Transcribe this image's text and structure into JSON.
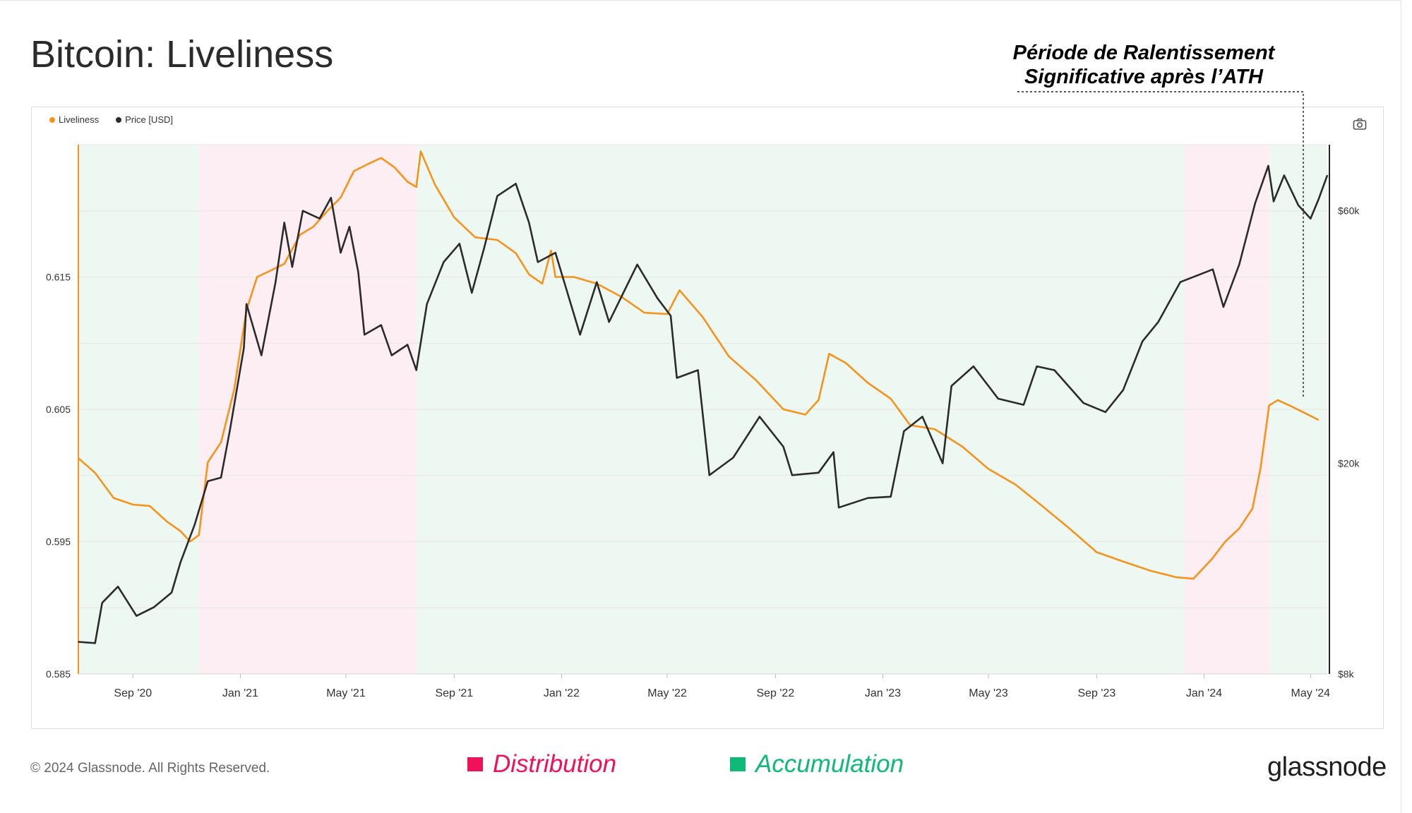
{
  "header": {
    "title": "Bitcoin: Liveliness",
    "callout_line1": "Période de Ralentissement",
    "callout_line2": "Significative après l’ATH"
  },
  "legend": {
    "liveliness_label": "Liveliness",
    "price_label": "Price [USD]"
  },
  "footer": {
    "copyright": "© 2024 Glassnode. All Rights Reserved.",
    "distribution_label": "Distribution",
    "accumulation_label": "Accumulation",
    "brand": "glassnode"
  },
  "watermark": "glassnode",
  "icons": {
    "camera": "camera-icon"
  },
  "colors": {
    "liveliness": "#f7931a",
    "price": "#2b2b2b",
    "distribution_band": "#fdeef3",
    "accumulation_band": "#eef8f3",
    "distribution_key": "#f0115a",
    "accumulation_key": "#0fb978"
  },
  "chart_data": {
    "type": "line",
    "title": "Bitcoin: Liveliness",
    "x_ticks": [
      "Sep '20",
      "Jan '21",
      "May '21",
      "Sep '21",
      "Jan '22",
      "May '22",
      "Sep '22",
      "Jan '23",
      "May '23",
      "Sep '23",
      "Jan '24",
      "May '24"
    ],
    "x_range": [
      "2020-07-01",
      "2024-05-20"
    ],
    "y_left": {
      "label": "Liveliness",
      "ticks": [
        "0.585",
        "0.595",
        "0.605",
        "0.615"
      ],
      "range": [
        0.585,
        0.625
      ]
    },
    "y_right": {
      "label": "Price [USD]",
      "scale": "log",
      "ticks": [
        "$8k",
        "$20k",
        "$60k"
      ],
      "range": [
        8000,
        80000
      ]
    },
    "grid": true,
    "legend_position": "top-left",
    "regimes": [
      {
        "label": "Accumulation",
        "start": "2020-07-01",
        "end": "2020-11-15"
      },
      {
        "label": "Distribution",
        "start": "2020-11-15",
        "end": "2021-07-20"
      },
      {
        "label": "Accumulation",
        "start": "2021-07-20",
        "end": "2023-12-10"
      },
      {
        "label": "Distribution",
        "start": "2023-12-10",
        "end": "2024-03-15"
      },
      {
        "label": "Accumulation",
        "start": "2024-03-15",
        "end": "2024-05-20"
      }
    ],
    "series": [
      {
        "name": "Liveliness",
        "axis": "left",
        "points": [
          [
            "2020-07-01",
            0.6013
          ],
          [
            "2020-07-20",
            0.6002
          ],
          [
            "2020-08-10",
            0.5983
          ],
          [
            "2020-09-01",
            0.5978
          ],
          [
            "2020-09-20",
            0.5977
          ],
          [
            "2020-10-10",
            0.5965
          ],
          [
            "2020-10-25",
            0.5958
          ],
          [
            "2020-11-05",
            0.595
          ],
          [
            "2020-11-15",
            0.5955
          ],
          [
            "2020-11-25",
            0.601
          ],
          [
            "2020-12-10",
            0.6025
          ],
          [
            "2020-12-25",
            0.6065
          ],
          [
            "2021-01-08",
            0.6125
          ],
          [
            "2021-01-20",
            0.615
          ],
          [
            "2021-02-05",
            0.6155
          ],
          [
            "2021-02-20",
            0.616
          ],
          [
            "2021-03-10",
            0.6182
          ],
          [
            "2021-03-25",
            0.6188
          ],
          [
            "2021-04-10",
            0.62
          ],
          [
            "2021-04-25",
            0.621
          ],
          [
            "2021-05-10",
            0.623
          ],
          [
            "2021-05-25",
            0.6235
          ],
          [
            "2021-06-10",
            0.624
          ],
          [
            "2021-06-25",
            0.6233
          ],
          [
            "2021-07-10",
            0.6222
          ],
          [
            "2021-07-20",
            0.6218
          ],
          [
            "2021-07-25",
            0.6245
          ],
          [
            "2021-08-10",
            0.622
          ],
          [
            "2021-09-01",
            0.6195
          ],
          [
            "2021-09-25",
            0.618
          ],
          [
            "2021-10-20",
            0.6178
          ],
          [
            "2021-11-10",
            0.6168
          ],
          [
            "2021-11-25",
            0.6152
          ],
          [
            "2021-12-10",
            0.6145
          ],
          [
            "2021-12-20",
            0.617
          ],
          [
            "2021-12-25",
            0.615
          ],
          [
            "2022-01-15",
            0.615
          ],
          [
            "2022-02-10",
            0.6145
          ],
          [
            "2022-03-10",
            0.6135
          ],
          [
            "2022-04-05",
            0.6123
          ],
          [
            "2022-05-01",
            0.6122
          ],
          [
            "2022-05-15",
            0.614
          ],
          [
            "2022-06-10",
            0.612
          ],
          [
            "2022-07-10",
            0.609
          ],
          [
            "2022-08-10",
            0.6072
          ],
          [
            "2022-09-10",
            0.605
          ],
          [
            "2022-10-05",
            0.6046
          ],
          [
            "2022-10-20",
            0.6057
          ],
          [
            "2022-11-01",
            0.6092
          ],
          [
            "2022-11-20",
            0.6085
          ],
          [
            "2022-12-15",
            0.607
          ],
          [
            "2023-01-10",
            0.6058
          ],
          [
            "2023-02-01",
            0.6038
          ],
          [
            "2023-03-01",
            0.6035
          ],
          [
            "2023-04-01",
            0.6022
          ],
          [
            "2023-05-01",
            0.6005
          ],
          [
            "2023-06-01",
            0.5993
          ],
          [
            "2023-07-01",
            0.5977
          ],
          [
            "2023-08-01",
            0.596
          ],
          [
            "2023-09-01",
            0.5942
          ],
          [
            "2023-10-01",
            0.5935
          ],
          [
            "2023-11-01",
            0.5928
          ],
          [
            "2023-12-01",
            0.5923
          ],
          [
            "2023-12-20",
            0.5922
          ],
          [
            "2024-01-10",
            0.5937
          ],
          [
            "2024-01-25",
            0.595
          ],
          [
            "2024-02-10",
            0.596
          ],
          [
            "2024-02-25",
            0.5975
          ],
          [
            "2024-03-05",
            0.6005
          ],
          [
            "2024-03-15",
            0.6053
          ],
          [
            "2024-03-25",
            0.6057
          ],
          [
            "2024-04-10",
            0.6052
          ],
          [
            "2024-04-25",
            0.6047
          ],
          [
            "2024-05-10",
            0.6042
          ]
        ]
      },
      {
        "name": "Price [USD]",
        "axis": "right",
        "points": [
          [
            "2020-07-01",
            9200
          ],
          [
            "2020-07-20",
            9150
          ],
          [
            "2020-07-28",
            10900
          ],
          [
            "2020-08-15",
            11700
          ],
          [
            "2020-09-05",
            10300
          ],
          [
            "2020-09-25",
            10700
          ],
          [
            "2020-10-15",
            11400
          ],
          [
            "2020-10-25",
            13000
          ],
          [
            "2020-11-10",
            15300
          ],
          [
            "2020-11-25",
            18500
          ],
          [
            "2020-12-10",
            18800
          ],
          [
            "2020-12-20",
            23000
          ],
          [
            "2021-01-05",
            33000
          ],
          [
            "2021-01-08",
            40000
          ],
          [
            "2021-01-25",
            32000
          ],
          [
            "2021-02-10",
            44000
          ],
          [
            "2021-02-20",
            57000
          ],
          [
            "2021-03-01",
            47000
          ],
          [
            "2021-03-13",
            60000
          ],
          [
            "2021-04-01",
            58000
          ],
          [
            "2021-04-14",
            63500
          ],
          [
            "2021-04-25",
            50000
          ],
          [
            "2021-05-05",
            56000
          ],
          [
            "2021-05-15",
            46000
          ],
          [
            "2021-05-22",
            35000
          ],
          [
            "2021-06-10",
            36500
          ],
          [
            "2021-06-22",
            32000
          ],
          [
            "2021-07-10",
            33500
          ],
          [
            "2021-07-20",
            30000
          ],
          [
            "2021-08-01",
            40000
          ],
          [
            "2021-08-20",
            48000
          ],
          [
            "2021-09-07",
            52000
          ],
          [
            "2021-09-21",
            42000
          ],
          [
            "2021-10-05",
            51000
          ],
          [
            "2021-10-20",
            64000
          ],
          [
            "2021-11-10",
            67500
          ],
          [
            "2021-11-25",
            57000
          ],
          [
            "2021-12-05",
            48000
          ],
          [
            "2021-12-25",
            50000
          ],
          [
            "2022-01-22",
            35000
          ],
          [
            "2022-02-10",
            44000
          ],
          [
            "2022-02-24",
            37000
          ],
          [
            "2022-03-28",
            47500
          ],
          [
            "2022-04-20",
            41000
          ],
          [
            "2022-05-05",
            38000
          ],
          [
            "2022-05-12",
            29000
          ],
          [
            "2022-06-05",
            30000
          ],
          [
            "2022-06-18",
            19000
          ],
          [
            "2022-07-15",
            20500
          ],
          [
            "2022-08-14",
            24500
          ],
          [
            "2022-09-10",
            21500
          ],
          [
            "2022-09-20",
            19000
          ],
          [
            "2022-10-20",
            19200
          ],
          [
            "2022-11-06",
            21000
          ],
          [
            "2022-11-12",
            16500
          ],
          [
            "2022-12-15",
            17200
          ],
          [
            "2023-01-10",
            17300
          ],
          [
            "2023-01-25",
            23000
          ],
          [
            "2023-02-15",
            24500
          ],
          [
            "2023-03-10",
            20000
          ],
          [
            "2023-03-20",
            28000
          ],
          [
            "2023-04-14",
            30500
          ],
          [
            "2023-05-12",
            26500
          ],
          [
            "2023-06-10",
            25800
          ],
          [
            "2023-06-25",
            30500
          ],
          [
            "2023-07-15",
            30000
          ],
          [
            "2023-08-17",
            26000
          ],
          [
            "2023-09-11",
            25000
          ],
          [
            "2023-10-01",
            27500
          ],
          [
            "2023-10-23",
            34000
          ],
          [
            "2023-11-10",
            37000
          ],
          [
            "2023-12-05",
            44000
          ],
          [
            "2024-01-11",
            46500
          ],
          [
            "2024-01-23",
            39500
          ],
          [
            "2024-02-10",
            47500
          ],
          [
            "2024-02-28",
            62000
          ],
          [
            "2024-03-14",
            73000
          ],
          [
            "2024-03-20",
            62500
          ],
          [
            "2024-04-01",
            70000
          ],
          [
            "2024-04-17",
            61500
          ],
          [
            "2024-05-01",
            58000
          ],
          [
            "2024-05-10",
            63000
          ],
          [
            "2024-05-20",
            70000
          ]
        ]
      }
    ]
  }
}
